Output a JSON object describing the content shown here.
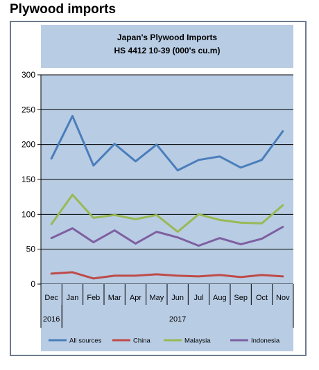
{
  "page": {
    "heading": "Plywood imports"
  },
  "chart_data": {
    "type": "line",
    "title": "Japan's Plywood Imports",
    "subtitle": "HS 4412 10-39  (000's cu.m)",
    "categories": [
      "Dec",
      "Jan",
      "Feb",
      "Mar",
      "Apr",
      "May",
      "Jun",
      "Jul",
      "Aug",
      "Sep",
      "Oct",
      "Nov"
    ],
    "year_groups": [
      {
        "label": "2016",
        "count": 1
      },
      {
        "label": "2017",
        "count": 11
      }
    ],
    "ylim": [
      0,
      300
    ],
    "yticks": [
      "0",
      "50",
      "100",
      "150",
      "200",
      "250",
      "300"
    ],
    "grid": true,
    "legend_position": "bottom",
    "colors": {
      "plot_background": "#b8cce4",
      "frame_background": "#ffffff",
      "gridline": "#000000"
    },
    "series": [
      {
        "name": "All sources",
        "color": "#4a7ebb",
        "values": [
          180,
          241,
          170,
          201,
          176,
          200,
          163,
          178,
          183,
          167,
          178,
          219
        ]
      },
      {
        "name": "China",
        "color": "#be4b48",
        "values": [
          15,
          17,
          8,
          12,
          12,
          14,
          12,
          11,
          13,
          10,
          13,
          11
        ]
      },
      {
        "name": "Malaysia",
        "color": "#98b954",
        "values": [
          86,
          128,
          95,
          99,
          93,
          99,
          75,
          100,
          92,
          88,
          87,
          113
        ]
      },
      {
        "name": "Indonesia",
        "color": "#7d5fa0",
        "values": [
          66,
          80,
          60,
          77,
          58,
          75,
          67,
          55,
          66,
          57,
          65,
          82
        ]
      }
    ]
  }
}
